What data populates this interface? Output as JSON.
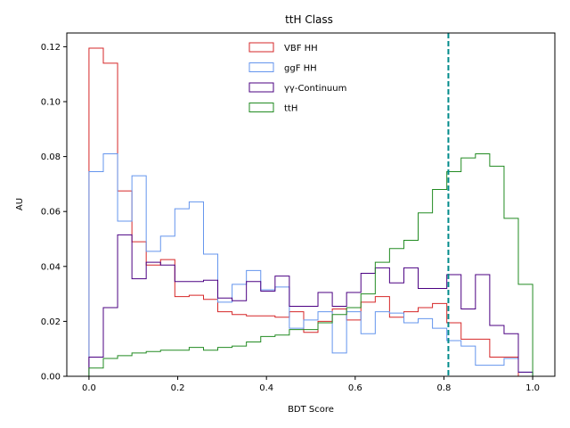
{
  "chart_data": {
    "type": "histogram",
    "title": "ttH Class",
    "xlabel": "BDT Score",
    "ylabel": "AU",
    "xlim": [
      -0.05,
      1.05
    ],
    "ylim": [
      0,
      0.125
    ],
    "xticks": [
      "0.0",
      "0.2",
      "0.4",
      "0.6",
      "0.8",
      "1.0"
    ],
    "yticks": [
      "0.00",
      "0.02",
      "0.04",
      "0.06",
      "0.08",
      "0.10",
      "0.12"
    ],
    "bin_edges": [
      0.0,
      0.0323,
      0.0645,
      0.0968,
      0.129,
      0.1613,
      0.1935,
      0.2258,
      0.2581,
      0.2903,
      0.3226,
      0.3548,
      0.3871,
      0.4194,
      0.4516,
      0.4839,
      0.5161,
      0.5484,
      0.5806,
      0.6129,
      0.6452,
      0.6774,
      0.7097,
      0.7419,
      0.7742,
      0.8065,
      0.8387,
      0.871,
      0.9032,
      0.9355,
      0.9677,
      1.0
    ],
    "cut_line": 0.81,
    "legend_position": "upper-center",
    "series": [
      {
        "name": "VBF HH",
        "color": "#d62728",
        "values": [
          0.1195,
          0.114,
          0.0675,
          0.049,
          0.0405,
          0.0425,
          0.029,
          0.0295,
          0.028,
          0.0235,
          0.0225,
          0.022,
          0.022,
          0.0215,
          0.0235,
          0.016,
          0.02,
          0.0245,
          0.0205,
          0.027,
          0.029,
          0.0215,
          0.0235,
          0.025,
          0.0265,
          0.0195,
          0.0135,
          0.0135,
          0.007,
          0.007,
          0.0
        ]
      },
      {
        "name": "ggF HH",
        "color": "#6495ed",
        "values": [
          0.0745,
          0.081,
          0.0565,
          0.073,
          0.0455,
          0.051,
          0.061,
          0.0635,
          0.0445,
          0.027,
          0.0335,
          0.0385,
          0.0315,
          0.0325,
          0.0175,
          0.0205,
          0.0235,
          0.0085,
          0.0235,
          0.0155,
          0.0235,
          0.023,
          0.0195,
          0.021,
          0.0175,
          0.013,
          0.011,
          0.004,
          0.004,
          0.0065,
          0.0015
        ]
      },
      {
        "name": "γγ-Continuum",
        "color": "#4b0082",
        "values": [
          0.007,
          0.025,
          0.0515,
          0.0355,
          0.0415,
          0.0405,
          0.0345,
          0.0345,
          0.035,
          0.0285,
          0.0275,
          0.0345,
          0.031,
          0.0365,
          0.0255,
          0.0255,
          0.0305,
          0.0255,
          0.0305,
          0.0375,
          0.0395,
          0.034,
          0.0395,
          0.032,
          0.032,
          0.037,
          0.0245,
          0.037,
          0.0185,
          0.0155,
          0.0015
        ]
      },
      {
        "name": "ttH",
        "color": "#228b22",
        "values": [
          0.003,
          0.0065,
          0.0075,
          0.0085,
          0.009,
          0.0095,
          0.0095,
          0.0105,
          0.0095,
          0.0105,
          0.011,
          0.0125,
          0.0145,
          0.015,
          0.017,
          0.017,
          0.0195,
          0.0225,
          0.025,
          0.03,
          0.0415,
          0.0465,
          0.0495,
          0.0595,
          0.068,
          0.0745,
          0.0795,
          0.081,
          0.0765,
          0.0575,
          0.0335
        ]
      }
    ]
  }
}
